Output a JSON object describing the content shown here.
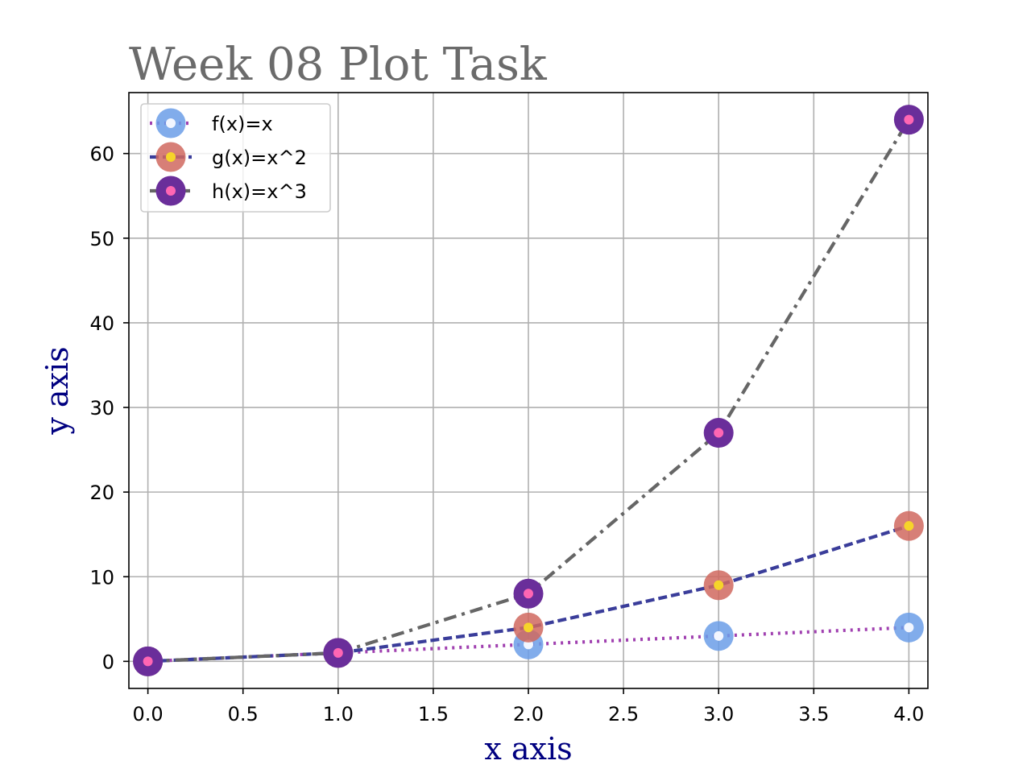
{
  "chart_data": {
    "type": "line",
    "title": "Week 08 Plot Task",
    "xlabel": "x axis",
    "ylabel": "y axis",
    "xlim": [
      -0.1,
      4.1
    ],
    "ylim": [
      -3.2,
      67.2
    ],
    "xticks": [
      0.0,
      0.5,
      1.0,
      1.5,
      2.0,
      2.5,
      3.0,
      3.5,
      4.0
    ],
    "xtick_labels": [
      "0.0",
      "0.5",
      "1.0",
      "1.5",
      "2.0",
      "2.5",
      "3.0",
      "3.5",
      "4.0"
    ],
    "yticks": [
      0,
      10,
      20,
      30,
      40,
      50,
      60
    ],
    "ytick_labels": [
      "0",
      "10",
      "20",
      "30",
      "40",
      "50",
      "60"
    ],
    "grid": true,
    "legend_position": "top-left",
    "x": [
      0,
      1,
      2,
      3,
      4
    ],
    "series": [
      {
        "name": "f(x)=x",
        "values": [
          0,
          1,
          2,
          3,
          4
        ],
        "line_color": "#a040b0",
        "line_style": "dotted",
        "marker_color": "#6b9de8",
        "marker_face_inner": "#f2f6ff"
      },
      {
        "name": "g(x)=x^2",
        "values": [
          0,
          1,
          4,
          9,
          16
        ],
        "line_color": "#3a3d9a",
        "line_style": "dashed",
        "marker_color": "#d0695f",
        "marker_face_inner": "#f6d42a"
      },
      {
        "name": "h(x)=x^3",
        "values": [
          0,
          1,
          8,
          27,
          64
        ],
        "line_color": "#666666",
        "line_style": "dashdot",
        "marker_color": "#6a2e9a",
        "marker_face_inner": "#ff66b3"
      }
    ],
    "colors": {
      "title": "#6b6b6b",
      "axis_label": "#000080",
      "grid": "#b0b0b0"
    }
  }
}
